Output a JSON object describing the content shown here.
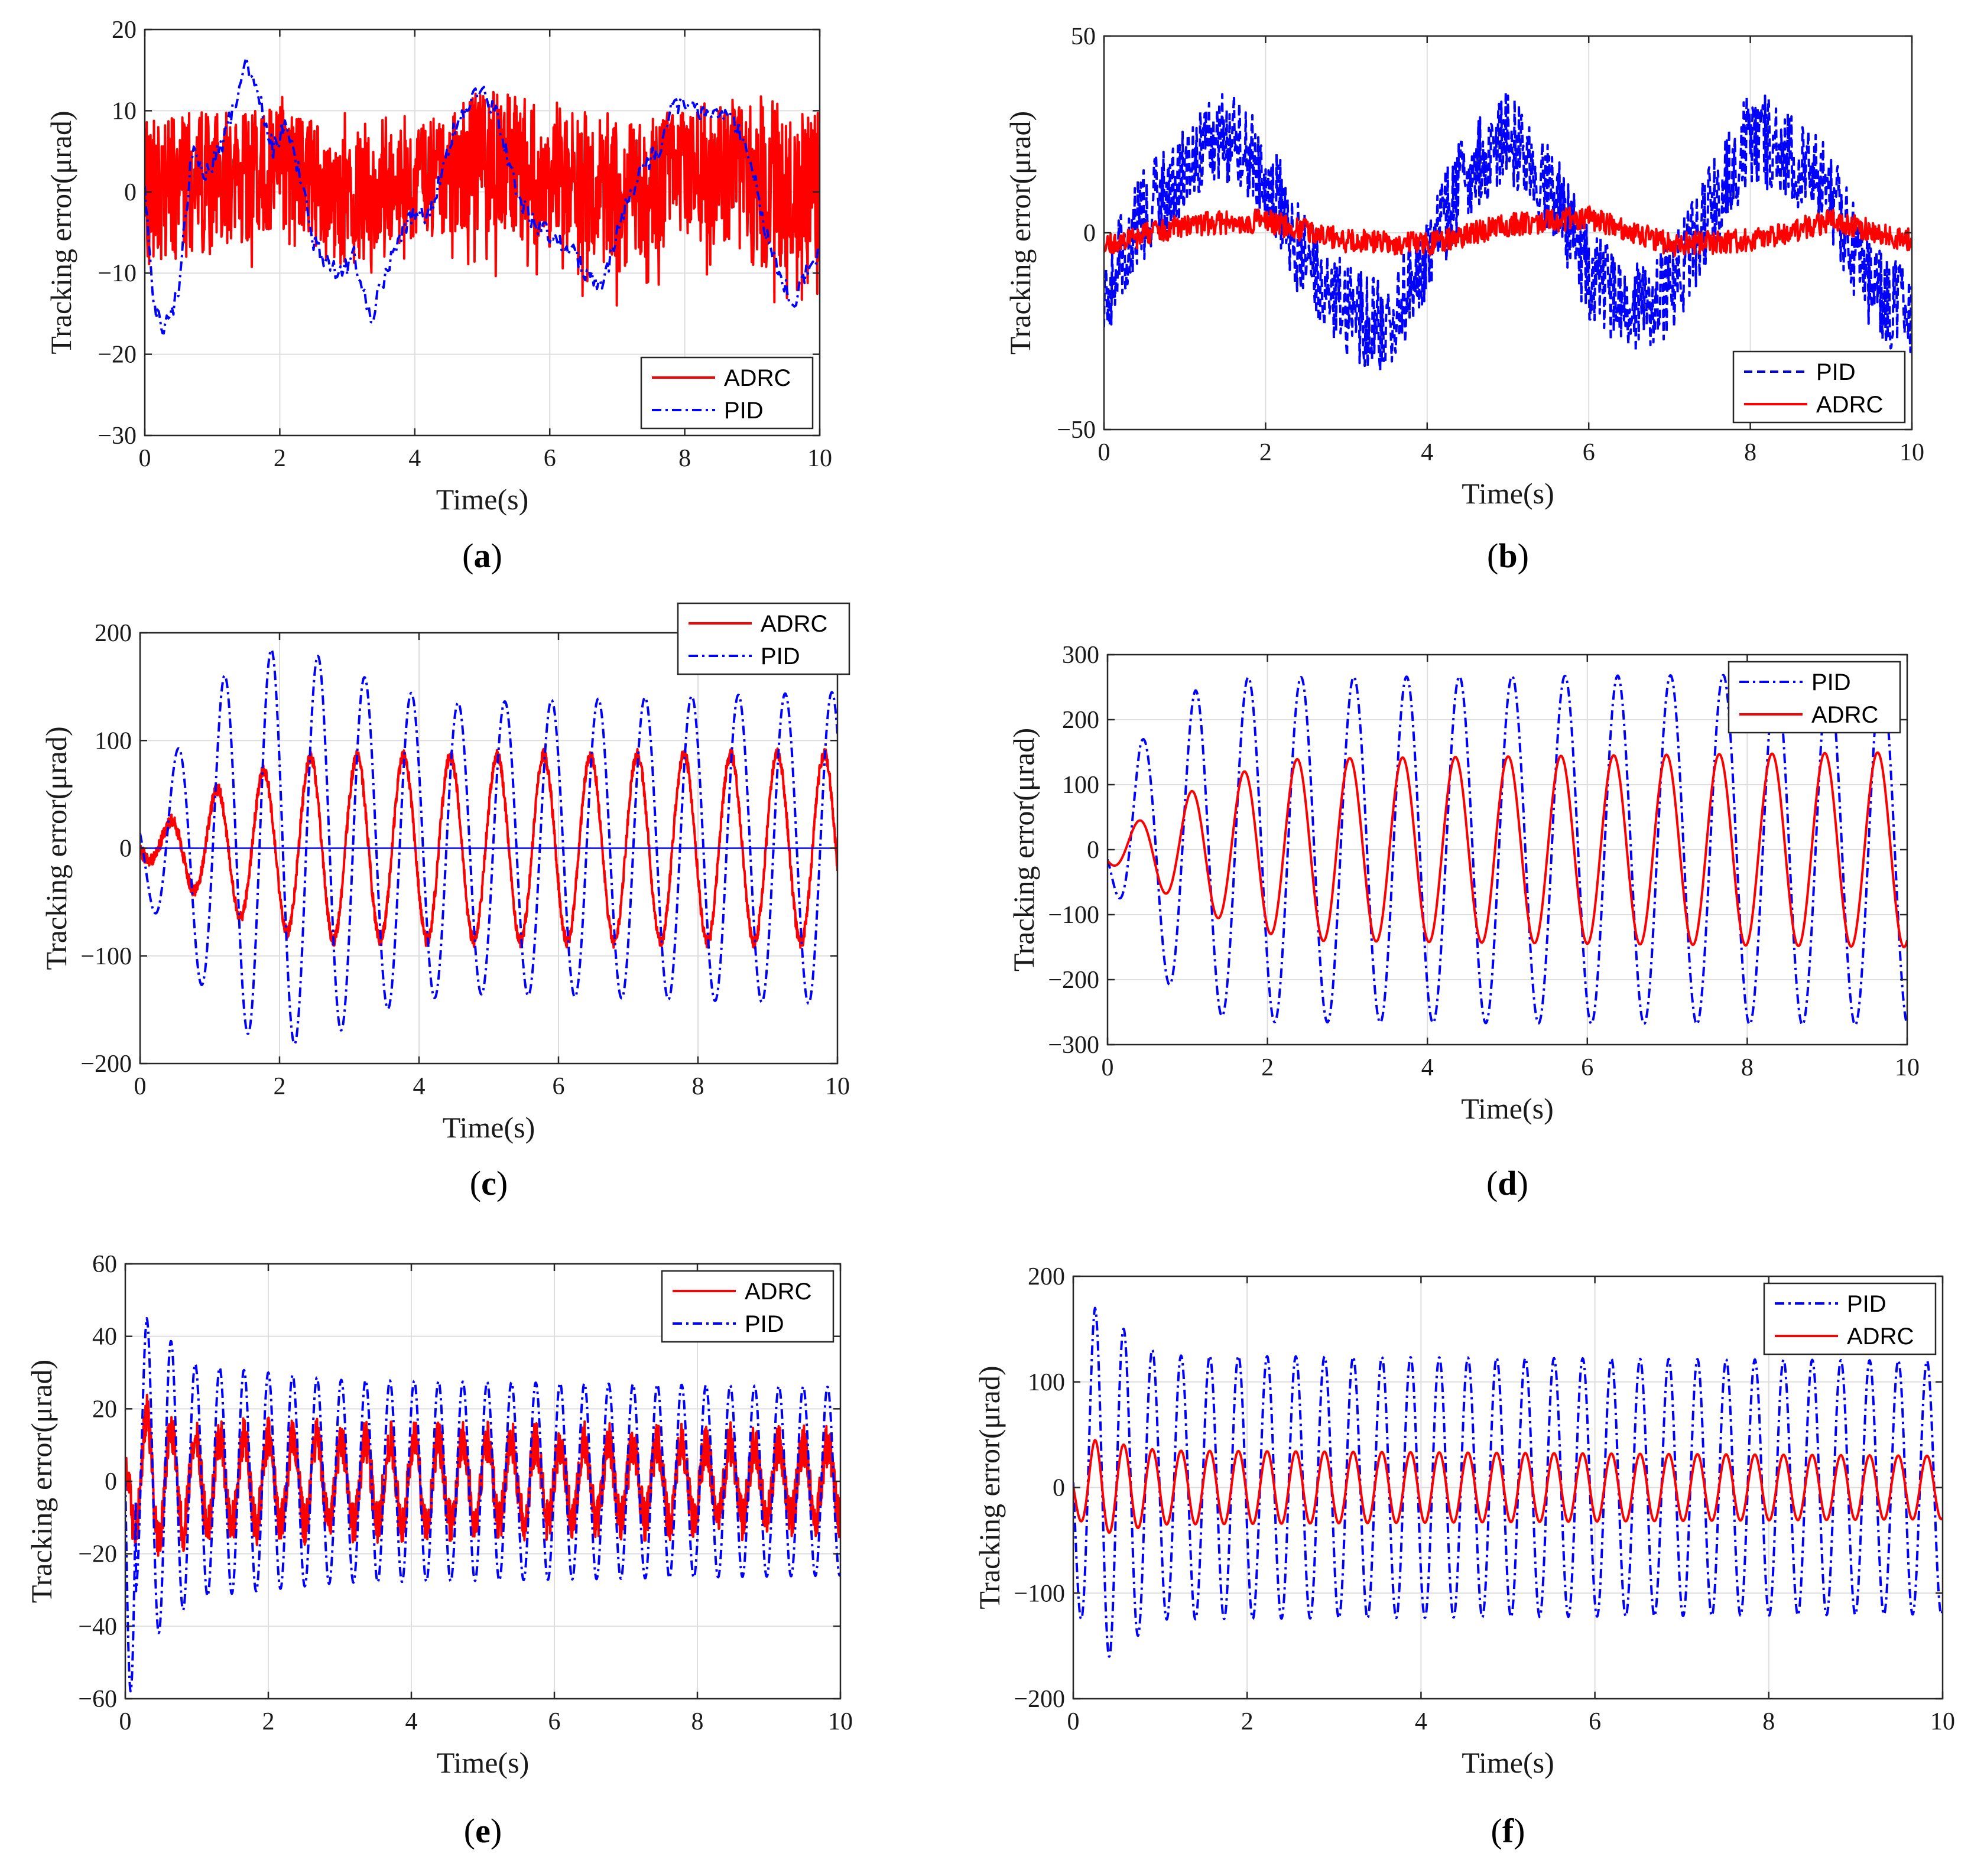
{
  "figure": {
    "panels": [
      {
        "id": "a",
        "label": "a"
      },
      {
        "id": "b",
        "label": "b"
      },
      {
        "id": "c",
        "label": "c"
      },
      {
        "id": "d",
        "label": "d"
      },
      {
        "id": "e",
        "label": "e"
      },
      {
        "id": "f",
        "label": "f"
      }
    ]
  },
  "chart_data": [
    {
      "panel": "a",
      "type": "line",
      "xlabel": "Time(s)",
      "ylabel": "Tracking error(μrad)",
      "xlim": [
        0,
        10
      ],
      "ylim": [
        -30,
        20
      ],
      "xticks": [
        0,
        2,
        4,
        6,
        8,
        10
      ],
      "yticks": [
        -30,
        -20,
        -10,
        0,
        10,
        20
      ],
      "grid": true,
      "legend_position": "bottom-right",
      "legend": [
        "ADRC",
        "PID"
      ],
      "series": [
        {
          "name": "ADRC",
          "color": "#ff0000",
          "style": "solid",
          "description": "high-frequency noisy error",
          "x": [
            0,
            1,
            2,
            3,
            4,
            5,
            6,
            7,
            8,
            9,
            10
          ],
          "envelope_low": [
            -15,
            -12,
            -8,
            -12,
            -8,
            -10,
            -12,
            -14,
            -10,
            -14,
            -14
          ],
          "envelope_high": [
            10,
            12,
            12,
            10,
            10,
            13,
            12,
            10,
            11,
            13,
            12
          ],
          "trend": [
            0,
            1,
            3,
            -1,
            1,
            4,
            2,
            -1,
            2,
            1,
            0
          ]
        },
        {
          "name": "PID",
          "color": "#0000ff",
          "style": "dashdot",
          "x": [
            0,
            0.15,
            0.3,
            0.5,
            0.7,
            0.9,
            1.1,
            1.3,
            1.5,
            1.7,
            1.9,
            2.1,
            2.3,
            2.5,
            2.7,
            2.9,
            3.1,
            3.35,
            3.6,
            3.8,
            4.0,
            4.2,
            4.4,
            4.6,
            4.8,
            5.0,
            5.2,
            5.4,
            5.6,
            5.8,
            6.0,
            6.2,
            6.4,
            6.6,
            6.8,
            7.0,
            7.2,
            7.4,
            7.6,
            7.8,
            8.0,
            8.2,
            8.4,
            8.6,
            8.8,
            9.0,
            9.2,
            9.4,
            9.6,
            9.8,
            10.0
          ],
          "y": [
            0,
            -15,
            -17,
            -12,
            5,
            2,
            5,
            10,
            16,
            12,
            5,
            9,
            2,
            -6,
            -9,
            -10,
            -8,
            -16,
            -9,
            -5,
            -3,
            -3,
            2,
            8,
            11,
            12,
            10,
            3,
            -2,
            -4,
            -5,
            -7,
            -8,
            -11,
            -11,
            -5,
            0,
            3,
            5,
            10,
            11,
            10,
            9,
            10,
            8,
            3,
            -5,
            -10,
            -14,
            -10,
            -7
          ]
        }
      ]
    },
    {
      "panel": "b",
      "type": "line",
      "xlabel": "Time(s)",
      "ylabel": "Tracking error(μrad)",
      "xlim": [
        0,
        10
      ],
      "ylim": [
        -50,
        50
      ],
      "xticks": [
        0,
        2,
        4,
        6,
        8,
        10
      ],
      "yticks": [
        -50,
        0,
        50
      ],
      "grid": true,
      "legend_position": "bottom-right",
      "legend": [
        "PID",
        "ADRC"
      ],
      "series": [
        {
          "name": "PID",
          "color": "#0000ff",
          "style": "dashed",
          "description": "noisy error with slow oscillation",
          "x": [
            0,
            0.5,
            1.0,
            1.5,
            2.0,
            2.5,
            3.0,
            3.5,
            4.0,
            4.5,
            5.0,
            5.5,
            6.0,
            6.5,
            7.0,
            7.5,
            8.0,
            8.5,
            9.0,
            9.5,
            10.0
          ],
          "trend": [
            -15,
            5,
            15,
            25,
            15,
            -8,
            -20,
            -25,
            -5,
            15,
            25,
            12,
            -10,
            -20,
            -15,
            5,
            25,
            20,
            10,
            -15,
            -20
          ],
          "noise_amplitude": 12
        },
        {
          "name": "ADRC",
          "color": "#ff0000",
          "style": "solid",
          "description": "small noisy error",
          "x": [
            0,
            1,
            2,
            3,
            4,
            5,
            6,
            7,
            8,
            9,
            10
          ],
          "trend": [
            -3,
            2,
            3,
            -2,
            -3,
            2,
            4,
            -3,
            -2,
            3,
            -2
          ],
          "noise_amplitude": 3
        }
      ]
    },
    {
      "panel": "c",
      "type": "line",
      "xlabel": "Time(s)",
      "ylabel": "Tracking error(μrad)",
      "xlim": [
        0,
        10
      ],
      "ylim": [
        -200,
        200
      ],
      "xticks": [
        0,
        2,
        4,
        6,
        8,
        10
      ],
      "yticks": [
        -200,
        -100,
        0,
        100,
        200
      ],
      "grid": true,
      "legend_position": "top-right",
      "legend": [
        "ADRC",
        "PID"
      ],
      "series": [
        {
          "name": "ADRC",
          "color": "#ff0000",
          "style": "solid",
          "description": "sinusoidal error, period about 0.67 s",
          "period": 0.67,
          "phase_peak_time": 1.1,
          "amplitude_envelope_t": [
            0,
            0.5,
            1.1,
            1.8,
            2.5,
            10
          ],
          "amplitude_envelope_a": [
            5,
            28,
            55,
            72,
            85,
            88
          ],
          "noise_amplitude": 6
        },
        {
          "name": "PID",
          "color": "#0000ff",
          "style": "dashdot",
          "description": "larger sinusoidal error, period about 0.67 s",
          "period": 0.67,
          "phase_peak_time": 1.21,
          "amplitude_envelope_t": [
            0,
            0.5,
            1.2,
            1.9,
            2.6,
            3.5,
            4.5,
            10
          ],
          "amplitude_envelope_a": [
            40,
            88,
            160,
            185,
            178,
            150,
            135,
            145
          ]
        }
      ]
    },
    {
      "panel": "d",
      "type": "line",
      "xlabel": "Time(s)",
      "ylabel": "Tracking error(μrad)",
      "xlim": [
        0,
        10
      ],
      "ylim": [
        -300,
        300
      ],
      "xticks": [
        0,
        2,
        4,
        6,
        8,
        10
      ],
      "yticks": [
        -300,
        -200,
        -100,
        0,
        100,
        200,
        300
      ],
      "grid": true,
      "legend_position": "top-right",
      "legend": [
        "PID",
        "ADRC"
      ],
      "series": [
        {
          "name": "PID",
          "color": "#0000ff",
          "style": "dashdot",
          "description": "sinusoidal error, period about 0.66 s",
          "period": 0.66,
          "phase_peak_time": 1.1,
          "amplitude_envelope_t": [
            0,
            0.4,
            1.1,
            1.7,
            10
          ],
          "amplitude_envelope_a": [
            30,
            165,
            245,
            265,
            270
          ]
        },
        {
          "name": "ADRC",
          "color": "#ff0000",
          "style": "solid",
          "description": "sinusoidal error, period about 0.66 s",
          "period": 0.66,
          "phase_peak_time": 1.05,
          "amplitude_envelope_t": [
            0,
            0.4,
            1.05,
            1.7,
            2.4,
            10
          ],
          "amplitude_envelope_a": [
            20,
            45,
            90,
            120,
            140,
            150
          ]
        }
      ]
    },
    {
      "panel": "e",
      "type": "line",
      "xlabel": "Time(s)",
      "ylabel": "Tracking error(μrad)",
      "xlim": [
        0,
        10
      ],
      "ylim": [
        -60,
        60
      ],
      "xticks": [
        0,
        2,
        4,
        6,
        8,
        10
      ],
      "yticks": [
        -60,
        -40,
        -20,
        0,
        20,
        40,
        60
      ],
      "grid": true,
      "legend_position": "top-right",
      "legend": [
        "ADRC",
        "PID"
      ],
      "series": [
        {
          "name": "ADRC",
          "color": "#ff0000",
          "style": "solid",
          "description": "noisy oscillating error",
          "period": 0.34,
          "phase_peak_time": 0.3,
          "amplitude_envelope_t": [
            0,
            0.3,
            1,
            10
          ],
          "amplitude_envelope_a": [
            10,
            18,
            12,
            10
          ],
          "noise_amplitude": 6
        },
        {
          "name": "PID",
          "color": "#0000ff",
          "style": "dashdot",
          "description": "oscillating error, period about 0.34 s, initial spike to -58",
          "period": 0.34,
          "phase_peak_time": 0.3,
          "initial_spike": -58,
          "amplitude_envelope_t": [
            0,
            0.3,
            1.0,
            2.0,
            3.0,
            10
          ],
          "amplitude_envelope_a": [
            20,
            45,
            32,
            30,
            28,
            26
          ]
        }
      ]
    },
    {
      "panel": "f",
      "type": "line",
      "xlabel": "Time(s)",
      "ylabel": "Tracking error(μrad)",
      "xlim": [
        0,
        10
      ],
      "ylim": [
        -200,
        200
      ],
      "xticks": [
        0,
        2,
        4,
        6,
        8,
        10
      ],
      "yticks": [
        -200,
        -100,
        0,
        100,
        200
      ],
      "grid": true,
      "legend_position": "top-right",
      "legend": [
        "PID",
        "ADRC"
      ],
      "series": [
        {
          "name": "PID",
          "color": "#0000ff",
          "style": "dashdot",
          "description": "oscillating error, period about 0.33 s",
          "period": 0.33,
          "phase_peak_time": 0.25,
          "amplitude_envelope_t": [
            0,
            0.25,
            1.0,
            10
          ],
          "amplitude_envelope_a": [
            100,
            170,
            125,
            120
          ]
        },
        {
          "name": "ADRC",
          "color": "#ff0000",
          "style": "solid",
          "description": "smaller oscillating error, period about 0.33 s",
          "period": 0.33,
          "phase_peak_time": 0.25,
          "amplitude_envelope_t": [
            0,
            0.25,
            1.0,
            10
          ],
          "amplitude_envelope_a": [
            25,
            45,
            35,
            30
          ]
        }
      ]
    }
  ]
}
